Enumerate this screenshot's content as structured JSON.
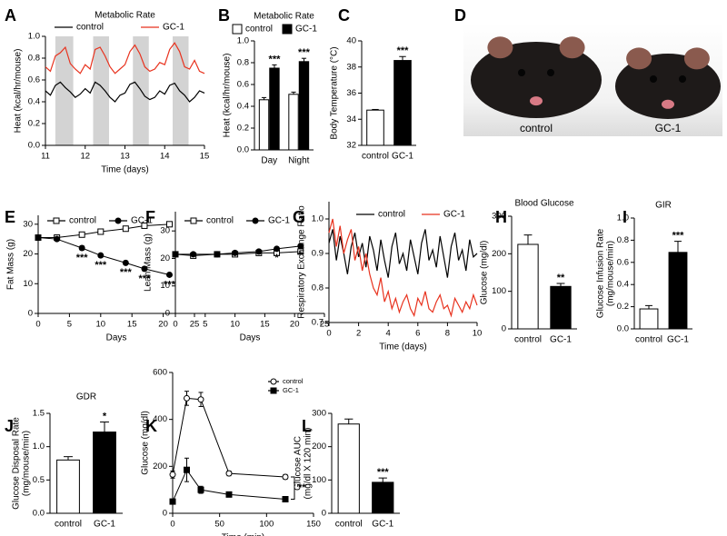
{
  "chart_data": [
    {
      "type": "line",
      "panel": "A",
      "title": "Metabolic Rate",
      "x_label": "Time (days)",
      "y_label": "Heat (kcal/hr/mouse)",
      "x": [
        11,
        11.125,
        11.25,
        11.375,
        11.5,
        11.625,
        11.75,
        11.875,
        12,
        12.125,
        12.25,
        12.375,
        12.5,
        12.625,
        12.75,
        12.875,
        13,
        13.125,
        13.25,
        13.375,
        13.5,
        13.625,
        13.75,
        13.875,
        14,
        14.125,
        14.25,
        14.375,
        14.5,
        14.625,
        14.75,
        14.875,
        15
      ],
      "series": [
        {
          "name": "control",
          "color": "#000000",
          "values": [
            0.5,
            0.46,
            0.55,
            0.58,
            0.53,
            0.49,
            0.44,
            0.47,
            0.52,
            0.48,
            0.58,
            0.55,
            0.5,
            0.44,
            0.4,
            0.46,
            0.48,
            0.56,
            0.58,
            0.52,
            0.45,
            0.42,
            0.44,
            0.5,
            0.47,
            0.55,
            0.57,
            0.5,
            0.46,
            0.4,
            0.44,
            0.5,
            0.48
          ]
        },
        {
          "name": "GC-1",
          "color": "#e8321e",
          "values": [
            0.72,
            0.68,
            0.82,
            0.85,
            0.9,
            0.75,
            0.7,
            0.66,
            0.74,
            0.7,
            0.88,
            0.9,
            0.82,
            0.72,
            0.66,
            0.7,
            0.74,
            0.86,
            0.92,
            0.84,
            0.72,
            0.68,
            0.7,
            0.76,
            0.74,
            0.88,
            0.94,
            0.86,
            0.72,
            0.7,
            0.78,
            0.68,
            0.66
          ]
        }
      ],
      "shaded": [
        [
          11.25,
          11.7
        ],
        [
          12.2,
          12.6
        ],
        [
          13.2,
          13.6
        ],
        [
          14.2,
          14.6
        ]
      ],
      "shade_color": "#d3d3d3",
      "xlim": [
        11,
        15
      ],
      "xticks": [
        11,
        12,
        13,
        14,
        15
      ],
      "ylim": [
        0,
        1
      ],
      "yticks": [
        {
          "value": 0,
          "label": "0.0"
        },
        0.2,
        0.4,
        0.6,
        0.8,
        {
          "value": 1,
          "label": "1.0"
        }
      ]
    },
    {
      "type": "bar",
      "panel": "B",
      "title": "Metabolic Rate",
      "y_label": "Heat (kcal/hr/mouse)",
      "categories": [
        "Day",
        "Night"
      ],
      "series": [
        {
          "name": "control",
          "color": "#ffffff",
          "values": [
            0.46,
            0.51
          ],
          "errors": [
            0.02,
            0.02
          ]
        },
        {
          "name": "GC-1",
          "color": "#000000",
          "values": [
            0.75,
            0.81
          ],
          "errors": [
            0.03,
            0.03
          ],
          "significance": [
            "***",
            "***"
          ]
        }
      ],
      "ylim": [
        0,
        1
      ],
      "yticks": [
        {
          "value": 0,
          "label": "0.0"
        },
        0.2,
        0.4,
        0.6,
        0.8,
        {
          "value": 1,
          "label": "1.0"
        }
      ]
    },
    {
      "type": "bar",
      "panel": "C",
      "y_label": "Body Temperature (°C)",
      "categories": [
        "control",
        "GC-1"
      ],
      "values": [
        34.7,
        38.5
      ],
      "errors": [
        0.05,
        0.3
      ],
      "colors": [
        "#ffffff",
        "#000000"
      ],
      "significance": [
        null,
        "***"
      ],
      "ylim": [
        32,
        40
      ],
      "yticks": [
        32,
        34,
        36,
        38,
        40
      ]
    },
    {
      "type": "image",
      "panel": "D",
      "labels": [
        "control",
        "GC-1"
      ]
    },
    {
      "type": "line",
      "panel": "E",
      "x_label": "Days",
      "y_label": "Fat Mass (g)",
      "x": [
        0,
        3,
        7,
        10,
        14,
        17,
        21
      ],
      "series": [
        {
          "name": "control",
          "color": "#000000",
          "marker": "square-open",
          "values": [
            25.5,
            25.5,
            26.5,
            27.5,
            28.5,
            29.5,
            30
          ],
          "errors": [
            0.4,
            0.4,
            0.4,
            0.4,
            0.4,
            0.4,
            0.4
          ]
        },
        {
          "name": "GC-1",
          "color": "#000000",
          "marker": "circle-filled",
          "values": [
            25.5,
            25,
            22,
            19.5,
            17,
            15,
            13
          ],
          "errors": [
            0.5,
            0.5,
            0.7,
            0.6,
            0.6,
            0.7,
            0.6
          ],
          "significance": [
            null,
            null,
            "***",
            "***",
            "***",
            "***",
            "***"
          ]
        }
      ],
      "xlim": [
        0,
        25
      ],
      "xticks": [
        0,
        5,
        10,
        15,
        20,
        25
      ],
      "ylim": [
        0,
        33
      ],
      "yticks": [
        0,
        10,
        20,
        30
      ]
    },
    {
      "type": "line",
      "panel": "F",
      "x_label": "Days",
      "y_label": "Lean Mass (g)",
      "x": [
        0,
        3,
        7,
        10,
        14,
        17,
        21
      ],
      "series": [
        {
          "name": "control",
          "color": "#000000",
          "marker": "square-open",
          "values": [
            21.5,
            21,
            21.5,
            21.5,
            22,
            22,
            22.5
          ],
          "errors": [
            0.3,
            0.3,
            0.3,
            0.3,
            0.3,
            0.3,
            0.3
          ]
        },
        {
          "name": "GC-1",
          "color": "#000000",
          "marker": "circle-filled",
          "values": [
            21.5,
            21.5,
            21.5,
            22,
            22.5,
            23.5,
            24.5
          ],
          "errors": [
            0.3,
            0.3,
            0.3,
            0.3,
            0.4,
            0.4,
            0.4
          ],
          "significance": [
            null,
            null,
            null,
            null,
            null,
            "*",
            "*"
          ]
        }
      ],
      "xlim": [
        0,
        25
      ],
      "xticks": [
        0,
        5,
        10,
        15,
        20,
        25
      ],
      "ylim": [
        0,
        37
      ],
      "yticks": [
        0,
        10,
        20,
        30
      ]
    },
    {
      "type": "line",
      "panel": "G",
      "x_label": "Time (days)",
      "y_label": "Respiratory Exchange Ratio",
      "x": [
        0,
        0.25,
        0.5,
        0.75,
        1,
        1.25,
        1.5,
        1.75,
        2,
        2.25,
        2.5,
        2.75,
        3,
        3.25,
        3.5,
        3.75,
        4,
        4.25,
        4.5,
        4.75,
        5,
        5.25,
        5.5,
        5.75,
        6,
        6.25,
        6.5,
        6.75,
        7,
        7.25,
        7.5,
        7.75,
        8,
        8.25,
        8.5,
        8.75,
        9,
        9.25,
        9.5,
        9.75,
        10
      ],
      "series": [
        {
          "name": "control",
          "color": "#000000",
          "values": [
            0.93,
            0.97,
            0.88,
            0.95,
            0.9,
            0.84,
            0.92,
            0.96,
            0.89,
            0.93,
            0.86,
            0.95,
            0.91,
            0.85,
            0.94,
            0.88,
            0.83,
            0.92,
            0.96,
            0.87,
            0.9,
            0.85,
            0.94,
            0.89,
            0.84,
            0.93,
            0.97,
            0.88,
            0.91,
            0.86,
            0.95,
            0.89,
            0.83,
            0.92,
            0.96,
            0.88,
            0.91,
            0.85,
            0.94,
            0.89,
            0.9
          ]
        },
        {
          "name": "GC-1",
          "color": "#e8321e",
          "values": [
            0.96,
            1.0,
            0.92,
            0.98,
            0.9,
            0.94,
            0.97,
            0.88,
            0.92,
            0.85,
            0.9,
            0.84,
            0.8,
            0.78,
            0.83,
            0.76,
            0.79,
            0.74,
            0.77,
            0.73,
            0.76,
            0.78,
            0.74,
            0.72,
            0.77,
            0.75,
            0.79,
            0.74,
            0.73,
            0.76,
            0.78,
            0.74,
            0.75,
            0.72,
            0.77,
            0.75,
            0.73,
            0.76,
            0.74,
            0.78,
            0.75
          ]
        }
      ],
      "xlim": [
        0,
        10
      ],
      "xticks": [
        0,
        2,
        4,
        6,
        8,
        10
      ],
      "ylim": [
        0.7,
        1.05
      ],
      "yticks": [
        0.7,
        0.8,
        0.9,
        {
          "value": 1,
          "label": "1.0"
        }
      ]
    },
    {
      "type": "bar",
      "panel": "H",
      "title": "Blood Glucose",
      "y_label": "Glucose (mg/dl)",
      "categories": [
        "control",
        "GC-1"
      ],
      "values": [
        225,
        113
      ],
      "errors": [
        25,
        8
      ],
      "colors": [
        "#ffffff",
        "#000000"
      ],
      "significance": [
        null,
        "**"
      ],
      "ylim": [
        0,
        300
      ],
      "yticks": [
        0,
        100,
        200,
        300
      ]
    },
    {
      "type": "bar",
      "panel": "I",
      "title": "GIR",
      "y_label": [
        "Glucose Infusion Rate",
        "(mg/mouse/min)"
      ],
      "categories": [
        "control",
        "GC-1"
      ],
      "values": [
        0.18,
        0.69
      ],
      "errors": [
        0.03,
        0.1
      ],
      "colors": [
        "#ffffff",
        "#000000"
      ],
      "significance": [
        null,
        "***"
      ],
      "ylim": [
        0,
        1
      ],
      "yticks": [
        {
          "value": 0,
          "label": "0.0"
        },
        0.2,
        0.4,
        0.6,
        0.8,
        {
          "value": 1,
          "label": "1.0"
        }
      ]
    },
    {
      "type": "bar",
      "panel": "J",
      "title": "GDR",
      "y_label": [
        "Glucose Disposal Rate",
        "(mg/mouse/min)"
      ],
      "categories": [
        "control",
        "GC-1"
      ],
      "values": [
        0.8,
        1.22
      ],
      "errors": [
        0.05,
        0.15
      ],
      "colors": [
        "#ffffff",
        "#000000"
      ],
      "significance": [
        null,
        "*"
      ],
      "ylim": [
        0,
        1.5
      ],
      "yticks": [
        {
          "value": 0,
          "label": "0.0"
        },
        0.5,
        {
          "value": 1,
          "label": "1.0"
        },
        1.5
      ]
    },
    {
      "type": "line",
      "panel": "K",
      "x_label": "Time (min)",
      "y_label": "Glucose (mg/dl)",
      "x": [
        0,
        15,
        30,
        60,
        120
      ],
      "series": [
        {
          "name": "control",
          "color": "#000000",
          "marker": "circle-open",
          "values": [
            165,
            490,
            485,
            170,
            155
          ],
          "errors": [
            15,
            30,
            30,
            10,
            10
          ]
        },
        {
          "name": "GC-1",
          "color": "#000000",
          "marker": "square-filled",
          "values": [
            50,
            185,
            100,
            80,
            60
          ],
          "errors": [
            10,
            50,
            15,
            8,
            8
          ]
        }
      ],
      "bracket_label": "**",
      "xlim": [
        0,
        150
      ],
      "xticks": [
        0,
        50,
        100,
        150
      ],
      "ylim": [
        0,
        600
      ],
      "yticks": [
        0,
        200,
        400,
        600
      ]
    },
    {
      "type": "bar",
      "panel": "L",
      "y_label": [
        "Glucose AUC",
        "(mg/dl X 120 min)"
      ],
      "categories": [
        "control",
        "GC-1"
      ],
      "values": [
        268,
        93
      ],
      "errors": [
        15,
        13
      ],
      "colors": [
        "#ffffff",
        "#000000"
      ],
      "significance": [
        null,
        "***"
      ],
      "ylim": [
        0,
        300
      ],
      "yticks": [
        0,
        100,
        200,
        300
      ]
    }
  ]
}
